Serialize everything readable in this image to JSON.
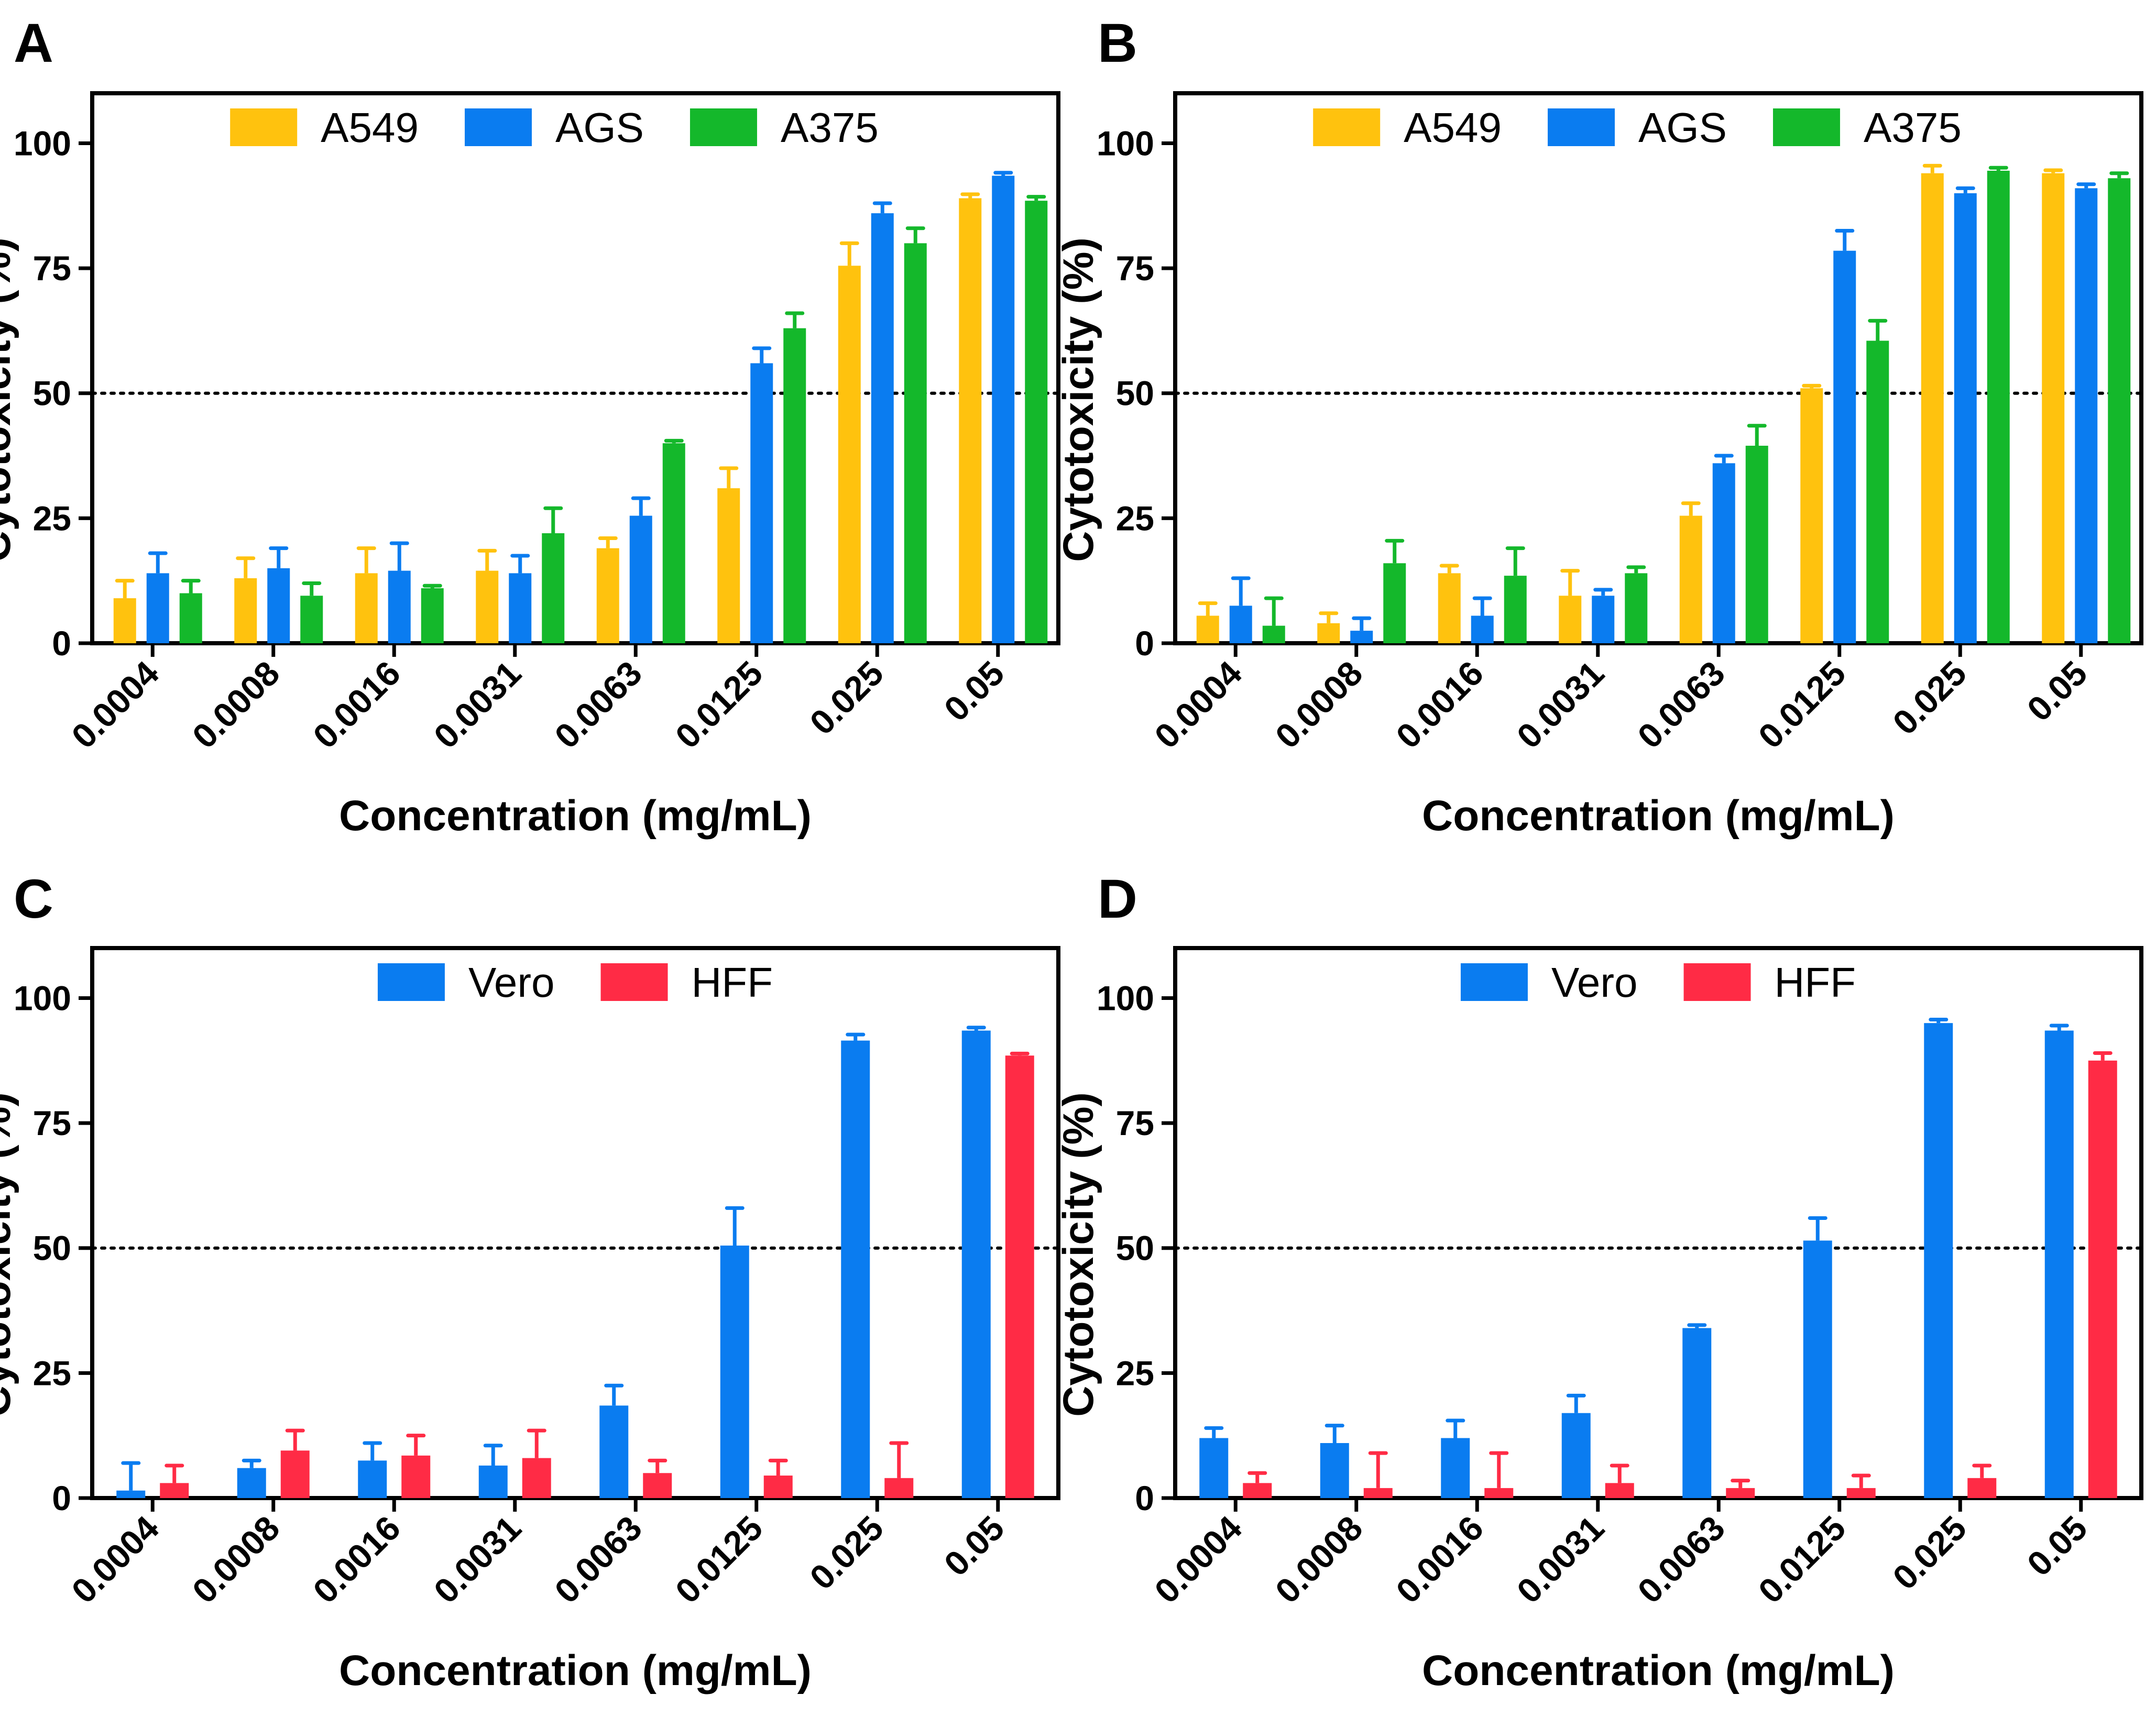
{
  "chart_data": [
    {
      "panel": "A",
      "type": "bar",
      "title": "",
      "xlabel": "Concentration (mg/mL)",
      "ylabel": "Cytotoxicity (%)",
      "ylim": [
        0,
        110
      ],
      "yticks": [
        "0",
        "25",
        "50",
        "75",
        "100"
      ],
      "reference_line": 50,
      "legend_position": "top",
      "categories": [
        "0.0004",
        "0.0008",
        "0.0016",
        "0.0031",
        "0.0063",
        "0.0125",
        "0.025",
        "0.05"
      ],
      "series": [
        {
          "name": "A549",
          "color": "#FFC20E",
          "values": [
            9,
            13,
            14,
            14.5,
            19,
            31,
            75.5,
            89
          ],
          "errors": [
            3.5,
            4,
            5,
            4,
            2,
            4,
            4.5,
            0.8
          ]
        },
        {
          "name": "AGS",
          "color": "#0A7CF0",
          "values": [
            14,
            15,
            14.5,
            14,
            25.5,
            56,
            86,
            93.5
          ],
          "errors": [
            4,
            4,
            5.5,
            3.5,
            3.5,
            3,
            2,
            0.6
          ]
        },
        {
          "name": "A375",
          "color": "#14B82B",
          "values": [
            10,
            9.5,
            11,
            22,
            40,
            63,
            80,
            88.5
          ],
          "errors": [
            2.5,
            2.5,
            0.5,
            5,
            0.5,
            3,
            3,
            0.8
          ]
        }
      ]
    },
    {
      "panel": "B",
      "type": "bar",
      "title": "",
      "xlabel": "Concentration (mg/mL)",
      "ylabel": "Cytotoxicity (%)",
      "ylim": [
        0,
        110
      ],
      "yticks": [
        "0",
        "25",
        "50",
        "75",
        "100"
      ],
      "reference_line": 50,
      "legend_position": "top",
      "categories": [
        "0.0004",
        "0.0008",
        "0.0016",
        "0.0031",
        "0.0063",
        "0.0125",
        "0.025",
        "0.05"
      ],
      "series": [
        {
          "name": "A549",
          "color": "#FFC20E",
          "values": [
            5.5,
            4,
            14,
            9.5,
            25.5,
            51,
            94,
            94
          ],
          "errors": [
            2.5,
            2,
            1.5,
            5,
            2.5,
            0.5,
            1.5,
            0.6
          ]
        },
        {
          "name": "AGS",
          "color": "#0A7CF0",
          "values": [
            7.5,
            2.5,
            5.5,
            9.5,
            36,
            78.5,
            90,
            91
          ],
          "errors": [
            5.5,
            2.5,
            3.5,
            1.2,
            1.5,
            4,
            1,
            0.8
          ]
        },
        {
          "name": "A375",
          "color": "#14B82B",
          "values": [
            3.5,
            16,
            13.5,
            14,
            39.5,
            60.5,
            94.5,
            93
          ],
          "errors": [
            5.5,
            4.5,
            5.5,
            1.2,
            4,
            4,
            0.6,
            1
          ]
        }
      ]
    },
    {
      "panel": "C",
      "type": "bar",
      "title": "",
      "xlabel": "Concentration (mg/mL)",
      "ylabel": "Cytotoxicity (%)",
      "ylim": [
        0,
        110
      ],
      "yticks": [
        "0",
        "25",
        "50",
        "75",
        "100"
      ],
      "reference_line": 50,
      "legend_position": "top",
      "categories": [
        "0.0004",
        "0.0008",
        "0.0016",
        "0.0031",
        "0.0063",
        "0.0125",
        "0.025",
        "0.05"
      ],
      "series": [
        {
          "name": "Vero",
          "color": "#0A7CF0",
          "values": [
            1.5,
            6,
            7.5,
            6.5,
            18.5,
            50.5,
            91.5,
            93.5
          ],
          "errors": [
            5.5,
            1.5,
            3.5,
            4,
            4,
            7.5,
            1.2,
            0.6
          ]
        },
        {
          "name": "HFF",
          "color": "#FF2B45",
          "values": [
            3,
            9.5,
            8.5,
            8,
            5,
            4.5,
            4,
            88.5
          ],
          "errors": [
            3.5,
            4,
            4,
            5.5,
            2.5,
            3,
            7,
            0.4
          ]
        }
      ]
    },
    {
      "panel": "D",
      "type": "bar",
      "title": "",
      "xlabel": "Concentration (mg/mL)",
      "ylabel": "Cytotoxicity (%)",
      "ylim": [
        0,
        110
      ],
      "yticks": [
        "0",
        "25",
        "50",
        "75",
        "100"
      ],
      "reference_line": 50,
      "legend_position": "top",
      "categories": [
        "0.0004",
        "0.0008",
        "0.0016",
        "0.0031",
        "0.0063",
        "0.0125",
        "0.025",
        "0.05"
      ],
      "series": [
        {
          "name": "Vero",
          "color": "#0A7CF0",
          "values": [
            12,
            11,
            12,
            17,
            34,
            51.5,
            95,
            93.5
          ],
          "errors": [
            2,
            3.5,
            3.5,
            3.5,
            0.6,
            4.5,
            0.7,
            1
          ]
        },
        {
          "name": "HFF",
          "color": "#FF2B45",
          "values": [
            3,
            2,
            2,
            3,
            2,
            2,
            4,
            87.5
          ],
          "errors": [
            2,
            7,
            7,
            3.5,
            1.5,
            2.5,
            2.5,
            1.5
          ]
        }
      ]
    }
  ]
}
